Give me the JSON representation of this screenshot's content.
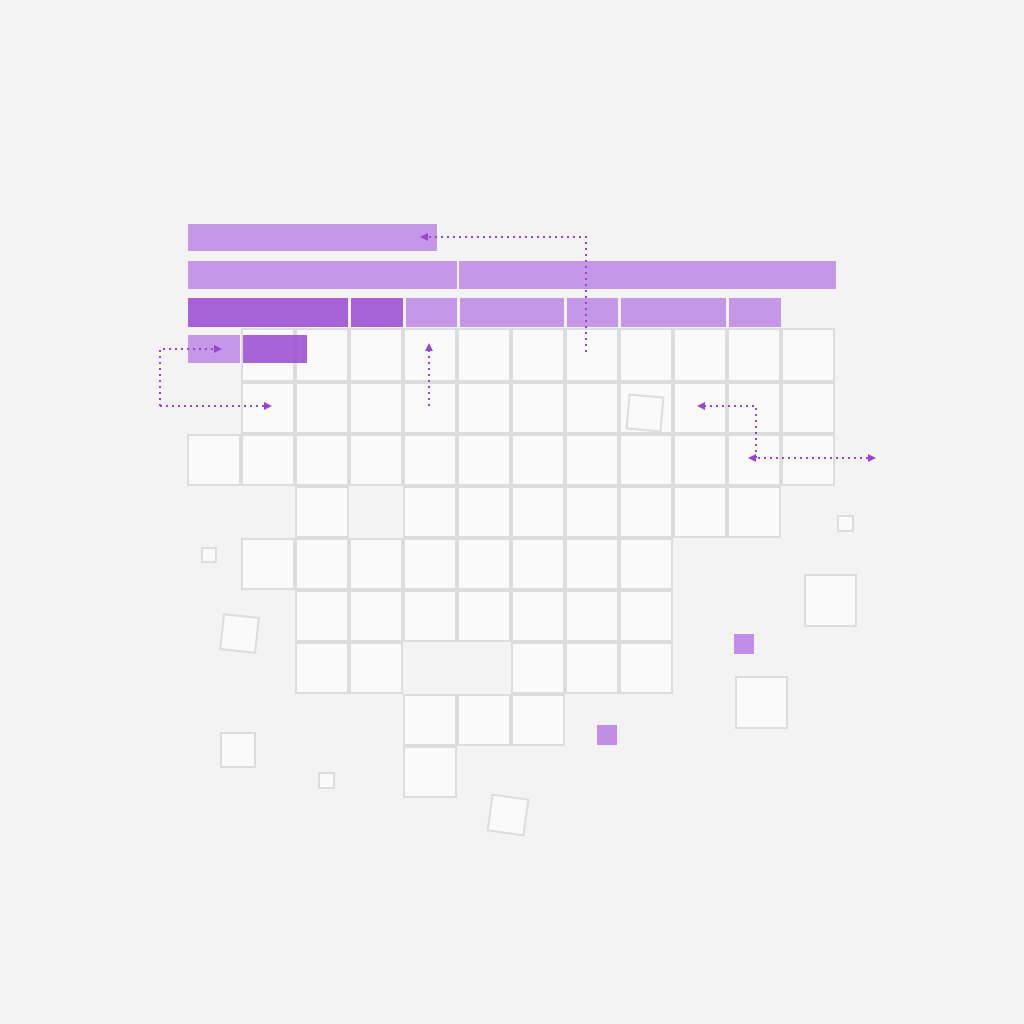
{
  "colors": {
    "background": "#f3f3f3",
    "cell_fill": "#fafafa",
    "cell_stroke": "#dddddd",
    "bar_light": "#c08ee6",
    "bar_dark": "#a052d4",
    "arrow": "#9a45d0"
  }
}
